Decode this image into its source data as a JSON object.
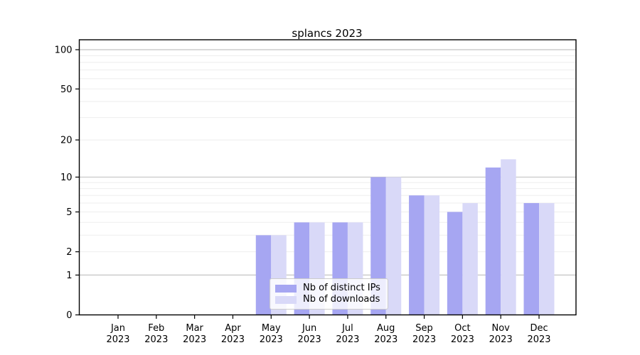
{
  "chart_data": {
    "type": "bar",
    "title": "splancs 2023",
    "categories": [
      "Jan 2023",
      "Feb 2023",
      "Mar 2023",
      "Apr 2023",
      "May 2023",
      "Jun 2023",
      "Jul 2023",
      "Aug 2023",
      "Sep 2023",
      "Oct 2023",
      "Nov 2023",
      "Dec 2023"
    ],
    "series": [
      {
        "name": "Nb of distinct IPs",
        "color": "#a6a6f2",
        "values": [
          0,
          0,
          0,
          0,
          3,
          4,
          4,
          10,
          7,
          5,
          12,
          6
        ]
      },
      {
        "name": "Nb of downloads",
        "color": "#d9d9f8",
        "values": [
          0,
          0,
          0,
          0,
          3,
          4,
          4,
          10,
          7,
          6,
          14,
          6
        ]
      }
    ],
    "xlabel": "",
    "ylabel": "",
    "yscale": "log1p",
    "ylim": [
      0,
      119
    ],
    "yticks": [
      0,
      1,
      2,
      5,
      10,
      20,
      50,
      100
    ],
    "gridlines_major": [
      1,
      10,
      100
    ],
    "gridlines_minor": [
      2,
      3,
      4,
      5,
      6,
      7,
      8,
      9,
      20,
      30,
      40,
      50,
      60,
      70,
      80,
      90
    ],
    "grid": true,
    "legend_position": "lower center",
    "colors": {
      "axis": "#000000",
      "grid_major": "#c4c4c4",
      "grid_minor": "#eeeeee",
      "background": "#ffffff"
    }
  }
}
